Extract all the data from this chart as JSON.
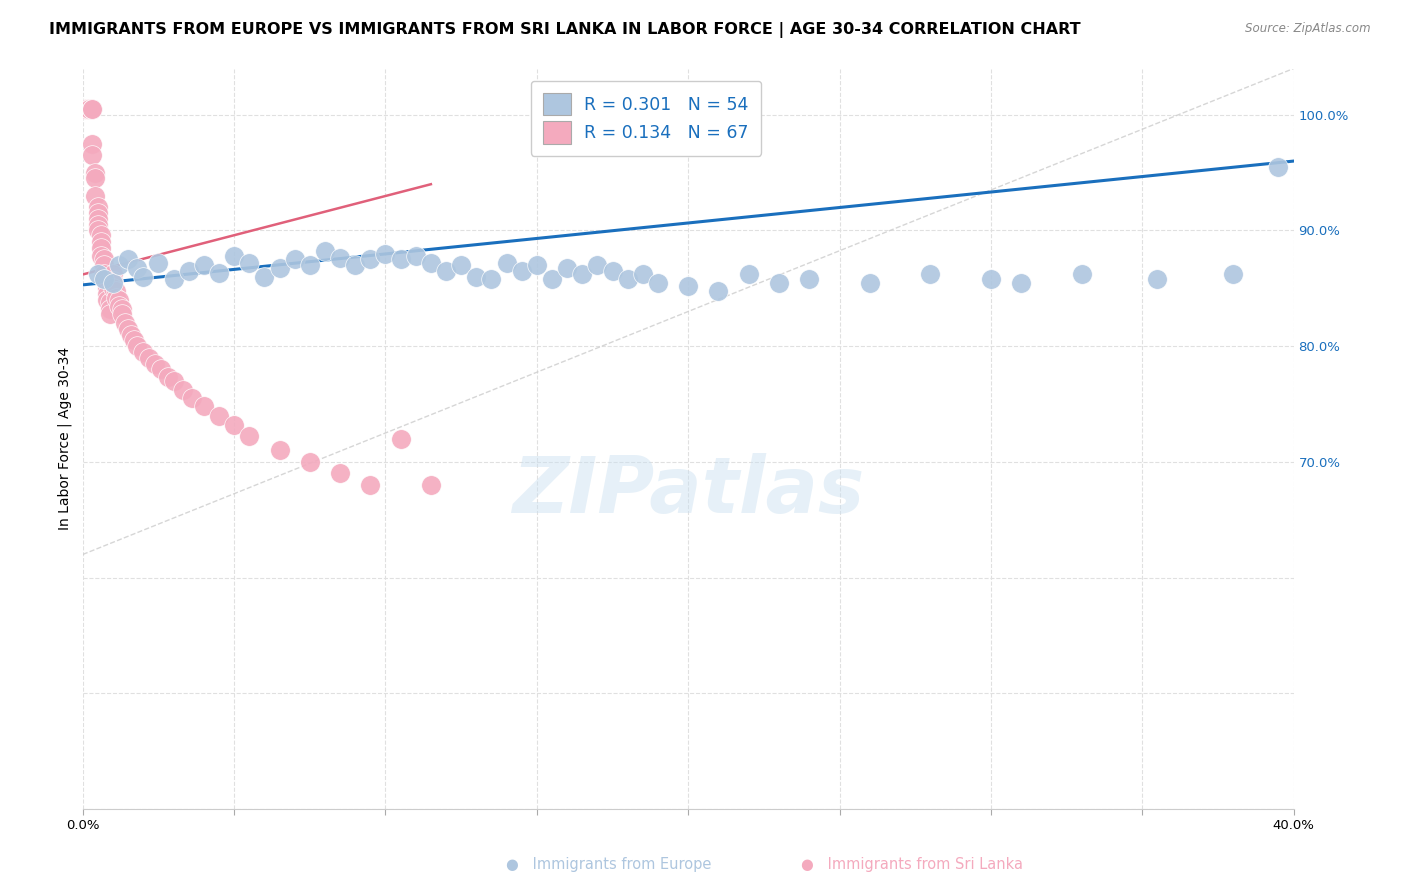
{
  "title": "IMMIGRANTS FROM EUROPE VS IMMIGRANTS FROM SRI LANKA IN LABOR FORCE | AGE 30-34 CORRELATION CHART",
  "source": "Source: ZipAtlas.com",
  "ylabel": "In Labor Force | Age 30-34",
  "europe_R": 0.301,
  "europe_N": 54,
  "srilanka_R": 0.134,
  "srilanka_N": 67,
  "europe_color": "#aec6df",
  "srilanka_color": "#f4aabe",
  "europe_line_color": "#1a6fbd",
  "srilanka_line_color": "#e0607a",
  "diagonal_color": "#cccccc",
  "background_color": "#ffffff",
  "grid_color": "#e0e0e0",
  "xlim": [
    0.0,
    0.4
  ],
  "ylim": [
    0.4,
    1.04
  ],
  "x_ticks": [
    0.0,
    0.05,
    0.1,
    0.15,
    0.2,
    0.25,
    0.3,
    0.35,
    0.4
  ],
  "y_ticks": [
    0.4,
    0.5,
    0.6,
    0.7,
    0.8,
    0.9,
    1.0
  ],
  "europe_x": [
    0.005,
    0.007,
    0.01,
    0.012,
    0.015,
    0.018,
    0.02,
    0.025,
    0.03,
    0.035,
    0.04,
    0.045,
    0.05,
    0.055,
    0.06,
    0.065,
    0.07,
    0.075,
    0.08,
    0.085,
    0.09,
    0.095,
    0.1,
    0.105,
    0.11,
    0.115,
    0.12,
    0.125,
    0.13,
    0.135,
    0.14,
    0.145,
    0.15,
    0.155,
    0.16,
    0.165,
    0.17,
    0.175,
    0.18,
    0.185,
    0.19,
    0.2,
    0.21,
    0.22,
    0.23,
    0.24,
    0.26,
    0.28,
    0.3,
    0.31,
    0.33,
    0.355,
    0.38,
    0.395
  ],
  "europe_y": [
    0.862,
    0.858,
    0.855,
    0.87,
    0.875,
    0.868,
    0.86,
    0.872,
    0.858,
    0.865,
    0.87,
    0.863,
    0.878,
    0.872,
    0.86,
    0.868,
    0.875,
    0.87,
    0.882,
    0.876,
    0.87,
    0.875,
    0.88,
    0.875,
    0.878,
    0.872,
    0.865,
    0.87,
    0.86,
    0.858,
    0.872,
    0.865,
    0.87,
    0.858,
    0.868,
    0.862,
    0.87,
    0.865,
    0.858,
    0.862,
    0.855,
    0.852,
    0.848,
    0.862,
    0.855,
    0.858,
    0.855,
    0.862,
    0.858,
    0.855,
    0.862,
    0.858,
    0.862,
    0.955
  ],
  "srilanka_x": [
    0.001,
    0.001,
    0.001,
    0.002,
    0.002,
    0.002,
    0.002,
    0.003,
    0.003,
    0.003,
    0.003,
    0.003,
    0.004,
    0.004,
    0.004,
    0.005,
    0.005,
    0.005,
    0.005,
    0.005,
    0.006,
    0.006,
    0.006,
    0.006,
    0.007,
    0.007,
    0.007,
    0.007,
    0.008,
    0.008,
    0.008,
    0.008,
    0.009,
    0.009,
    0.009,
    0.01,
    0.01,
    0.01,
    0.011,
    0.011,
    0.012,
    0.012,
    0.013,
    0.013,
    0.014,
    0.015,
    0.016,
    0.017,
    0.018,
    0.02,
    0.022,
    0.024,
    0.026,
    0.028,
    0.03,
    0.033,
    0.036,
    0.04,
    0.045,
    0.05,
    0.055,
    0.065,
    0.075,
    0.085,
    0.095,
    0.105,
    0.115
  ],
  "srilanka_y": [
    1.005,
    1.005,
    1.005,
    1.005,
    1.005,
    1.005,
    1.005,
    1.005,
    1.005,
    1.005,
    0.975,
    0.965,
    0.95,
    0.945,
    0.93,
    0.92,
    0.915,
    0.91,
    0.905,
    0.9,
    0.896,
    0.89,
    0.885,
    0.878,
    0.875,
    0.87,
    0.862,
    0.858,
    0.855,
    0.85,
    0.845,
    0.84,
    0.838,
    0.832,
    0.828,
    0.862,
    0.856,
    0.85,
    0.848,
    0.842,
    0.84,
    0.835,
    0.832,
    0.828,
    0.82,
    0.815,
    0.81,
    0.805,
    0.8,
    0.795,
    0.79,
    0.785,
    0.78,
    0.773,
    0.77,
    0.762,
    0.755,
    0.748,
    0.74,
    0.732,
    0.722,
    0.71,
    0.7,
    0.69,
    0.68,
    0.72,
    0.68
  ],
  "europe_line_x": [
    0.0,
    0.4
  ],
  "europe_line_y": [
    0.853,
    0.96
  ],
  "srilanka_line_x": [
    0.0,
    0.115
  ],
  "srilanka_line_y": [
    0.862,
    0.94
  ],
  "watermark": "ZIPatlas",
  "title_fontsize": 11.5,
  "axis_label_fontsize": 10,
  "tick_fontsize": 9.5,
  "legend_fontsize": 12.5
}
